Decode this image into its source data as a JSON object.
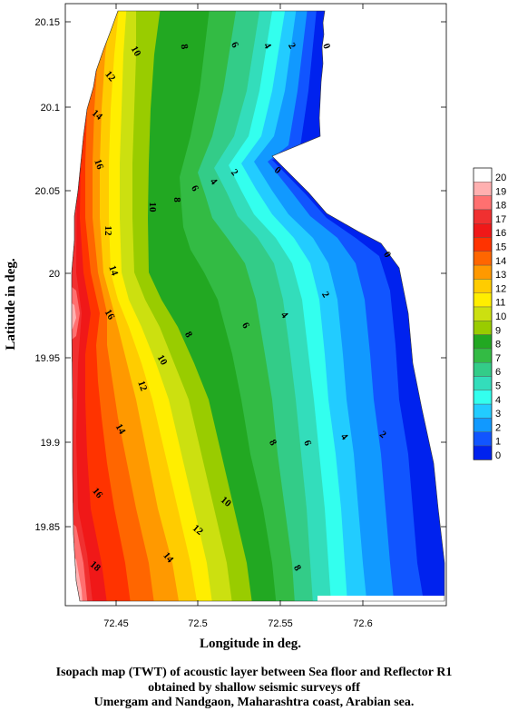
{
  "map": {
    "x_axis_title": "Longitude in deg.",
    "y_axis_title": "Latitude in deg.",
    "x_ticks": [
      "72.45",
      "72.5",
      "72.55",
      "72.6"
    ],
    "y_ticks": [
      "20.15",
      "20.1",
      "20.05",
      "20",
      "19.95",
      "19.9",
      "19.85"
    ],
    "contour_labels": [
      {
        "text": "10"
      },
      {
        "text": "8"
      },
      {
        "text": "6"
      },
      {
        "text": "4"
      },
      {
        "text": "2"
      },
      {
        "text": "0"
      },
      {
        "text": "12"
      },
      {
        "text": "14"
      },
      {
        "text": "16"
      },
      {
        "text": "10"
      },
      {
        "text": "8"
      },
      {
        "text": "6"
      },
      {
        "text": "4"
      },
      {
        "text": "2"
      },
      {
        "text": "0"
      },
      {
        "text": "12"
      },
      {
        "text": "14"
      },
      {
        "text": "16"
      },
      {
        "text": "0"
      },
      {
        "text": "2"
      },
      {
        "text": "4"
      },
      {
        "text": "6"
      },
      {
        "text": "8"
      },
      {
        "text": "10"
      },
      {
        "text": "12"
      },
      {
        "text": "14"
      },
      {
        "text": "2"
      },
      {
        "text": "4"
      },
      {
        "text": "6"
      },
      {
        "text": "8"
      },
      {
        "text": "16"
      },
      {
        "text": "10"
      },
      {
        "text": "12"
      },
      {
        "text": "14"
      },
      {
        "text": "18"
      },
      {
        "text": "8"
      }
    ]
  },
  "legend": {
    "levels": [
      "20",
      "19",
      "18",
      "17",
      "16",
      "15",
      "14",
      "13",
      "12",
      "11",
      "10",
      "9",
      "8",
      "7",
      "6",
      "5",
      "4",
      "3",
      "2",
      "1",
      "0"
    ],
    "colors": [
      "#FFFFFF",
      "#FFB0B0",
      "#FF7070",
      "#F03030",
      "#F01818",
      "#FF3300",
      "#FF6600",
      "#FF9900",
      "#FFCC00",
      "#FFEE00",
      "#CCE010",
      "#99CC00",
      "#22A822",
      "#33BB44",
      "#33CC88",
      "#33DDBB",
      "#33FFEE",
      "#22CCFF",
      "#1199FF",
      "#1155FF",
      "#0022EE"
    ]
  },
  "caption": {
    "line1": "Isopach map (TWT) of acoustic layer between Sea floor and Reflector R1",
    "line2": "obtained by shallow seismic surveys off",
    "line3": "Umergam and Nandgaon, Maharashtra coast, Arabian sea."
  }
}
